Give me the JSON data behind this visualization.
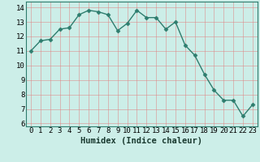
{
  "x": [
    0,
    1,
    2,
    3,
    4,
    5,
    6,
    7,
    8,
    9,
    10,
    11,
    12,
    13,
    14,
    15,
    16,
    17,
    18,
    19,
    20,
    21,
    22,
    23
  ],
  "y": [
    11.0,
    11.7,
    11.8,
    12.5,
    12.6,
    13.5,
    13.8,
    13.7,
    13.5,
    12.4,
    12.9,
    13.8,
    13.3,
    13.3,
    12.5,
    13.0,
    11.4,
    10.7,
    9.4,
    8.3,
    7.6,
    7.6,
    6.5,
    7.3
  ],
  "line_color": "#2e7d6e",
  "marker": "D",
  "markersize": 2.5,
  "linewidth": 1.0,
  "bg_color": "#cceee8",
  "plot_bg_color": "#cceee8",
  "grid_color": "#e08080",
  "xlabel": "Humidex (Indice chaleur)",
  "xlabel_fontsize": 7.5,
  "tick_fontsize": 6.5,
  "ylim": [
    5.8,
    14.4
  ],
  "xlim": [
    -0.5,
    23.5
  ],
  "yticks": [
    6,
    7,
    8,
    9,
    10,
    11,
    12,
    13,
    14
  ],
  "xticks": [
    0,
    1,
    2,
    3,
    4,
    5,
    6,
    7,
    8,
    9,
    10,
    11,
    12,
    13,
    14,
    15,
    16,
    17,
    18,
    19,
    20,
    21,
    22,
    23
  ]
}
